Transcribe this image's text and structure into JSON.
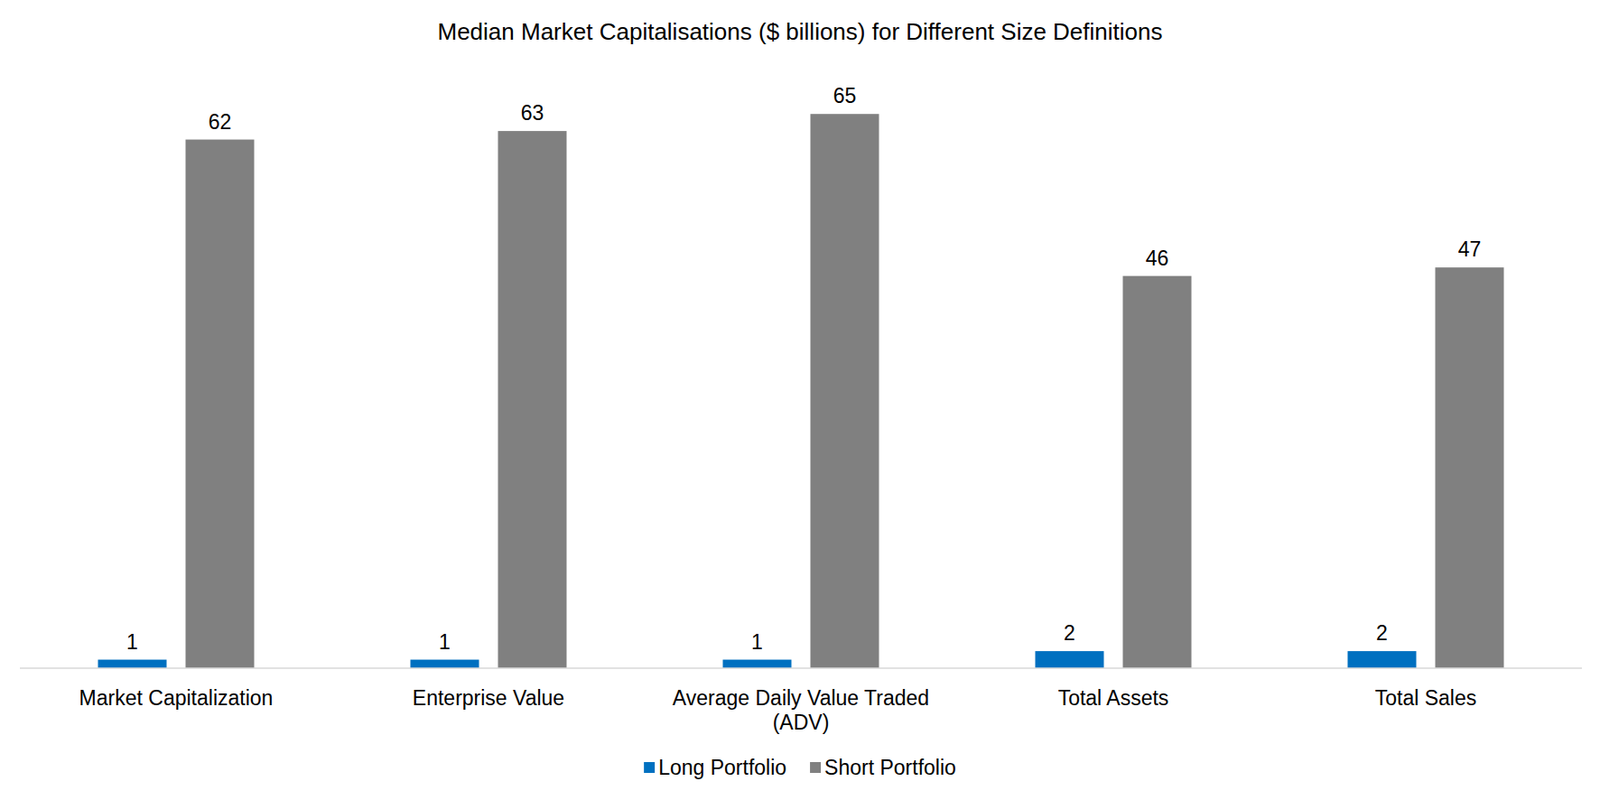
{
  "chart_data": {
    "type": "bar",
    "title": "Median Market Capitalisations ($ billions) for Different Size Definitions",
    "categories": [
      "Market Capitalization",
      "Enterprise Value",
      "Average Daily Value Traded (ADV)",
      "Total Assets",
      "Total Sales"
    ],
    "series": [
      {
        "name": "Long Portfolio",
        "color": "#0070c0",
        "values": [
          1,
          1,
          1,
          2,
          2
        ]
      },
      {
        "name": "Short Portfolio",
        "color": "#808080",
        "values": [
          62,
          63,
          65,
          46,
          47
        ]
      }
    ],
    "ylim": [
      0,
      70
    ],
    "grid": false,
    "legend": "bottom",
    "data_labels": true,
    "tick_labels": "x"
  }
}
